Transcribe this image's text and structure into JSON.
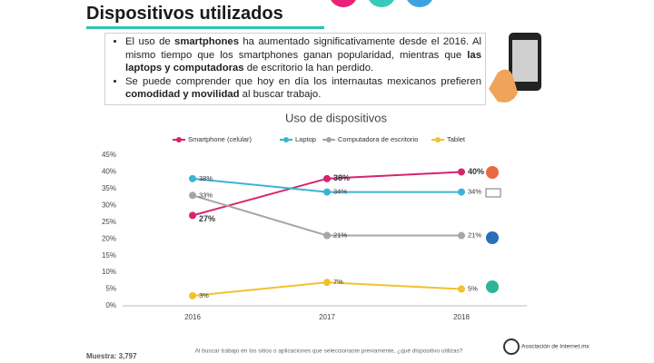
{
  "header": {
    "title": "Dispositivos utilizados"
  },
  "bullets": [
    [
      {
        "text": "El uso de ",
        "bold": false
      },
      {
        "text": "smartphones",
        "bold": true
      },
      {
        "text": " ha aumentado significativamente desde el 2016. Al mismo tiempo que los smartphones ganan popularidad, mientras que ",
        "bold": false
      },
      {
        "text": "las laptops y computadoras",
        "bold": true
      },
      {
        "text": " de escritorio la han perdido.",
        "bold": false
      }
    ],
    [
      {
        "text": "Se puede comprender que hoy en día los internautas mexicanos prefieren ",
        "bold": false
      },
      {
        "text": "comodidad y movilidad",
        "bold": true
      },
      {
        "text": " al buscar trabajo.",
        "bold": false
      }
    ]
  ],
  "chart_data": {
    "type": "line",
    "title": "Uso de dispositivos",
    "categories": [
      "2016",
      "2017",
      "2018"
    ],
    "series": [
      {
        "name": "Smartphone (celular)",
        "color": "#d6246e",
        "values": [
          27,
          38,
          40
        ],
        "value_labels": [
          "27%",
          "38%",
          "40%"
        ],
        "bold_labels": true
      },
      {
        "name": "Laptop",
        "color": "#3bb2d8",
        "values": [
          38,
          34,
          34
        ],
        "value_labels": [
          "38%",
          "34%",
          "34%"
        ],
        "bold_labels": false
      },
      {
        "name": "Computadora de escritorio",
        "color": "#a6a6a6",
        "values": [
          33,
          21,
          21
        ],
        "value_labels": [
          "33%",
          "21%",
          "21%"
        ],
        "bold_labels": false
      },
      {
        "name": "Tablet",
        "color": "#f2c12e",
        "values": [
          3,
          7,
          5
        ],
        "value_labels": [
          "3%",
          "7%",
          "5%"
        ],
        "bold_labels": false
      }
    ],
    "ylim": [
      0,
      45
    ],
    "yticks": [
      {
        "value": 0,
        "label": "0%"
      },
      {
        "value": 5,
        "label": "5%"
      },
      {
        "value": 10,
        "label": "10%"
      },
      {
        "value": 15,
        "label": "15%"
      },
      {
        "value": 20,
        "label": "20%"
      },
      {
        "value": 25,
        "label": "25%"
      },
      {
        "value": 30,
        "label": "30%"
      },
      {
        "value": 35,
        "label": "35%"
      },
      {
        "value": 40,
        "label": "40%"
      },
      {
        "value": 45,
        "label": "45%"
      }
    ],
    "legend": "top"
  },
  "footer": {
    "sample": "Muestra: 3,797",
    "question": "Al buscar trabajo en los sitios o aplicaciones que seleccionaste previamente, ¿qué dispositivo utilizas?",
    "logo": "Asociación de Internet.mx"
  }
}
